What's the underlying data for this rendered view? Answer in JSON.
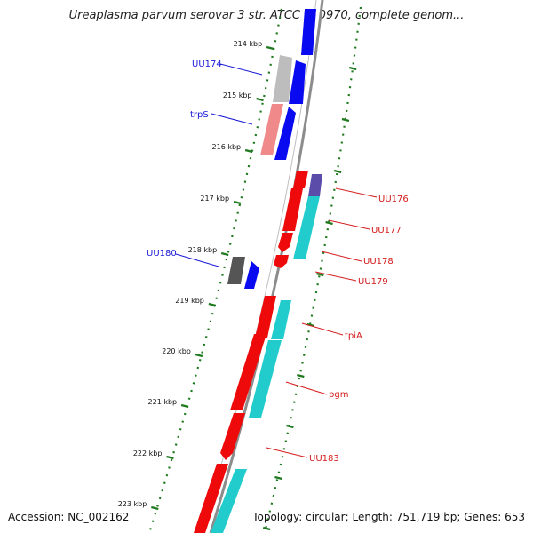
{
  "title": "Ureaplasma parvum serovar 3 str. ATCC 700970, complete genom...",
  "footer": {
    "accession_label": "Accession:",
    "accession": "NC_002162",
    "topology_label": "Topology:",
    "topology": "circular",
    "length_label": "Length:",
    "length": "751,719 bp",
    "genes_label": "Genes:",
    "genes": "653"
  },
  "colors": {
    "backbone": "#8c8c8c",
    "dotted_ring": "#1f7a1f",
    "forward_label": "#1a1ad6",
    "reverse_label": "#d41a1a",
    "gene_blue": "#0a0af0",
    "gene_red": "#ee0a0a",
    "gene_cyan": "#22cccc",
    "gene_gray": "#bdbdbd",
    "gene_pink": "#f08a8a",
    "gene_darkgray": "#555555",
    "gene_purple": "#5a4ca8"
  },
  "kbp_ticks": [
    "214 kbp",
    "215 kbp",
    "216 kbp",
    "217 kbp",
    "218 kbp",
    "219 kbp",
    "220 kbp",
    "221 kbp",
    "222 kbp",
    "223 kbp"
  ],
  "forward_labels": [
    "UU174",
    "trpS",
    "UU180"
  ],
  "reverse_labels": [
    "UU176",
    "UU177",
    "UU178",
    "UU179",
    "tpiA",
    "pgm",
    "UU183"
  ]
}
